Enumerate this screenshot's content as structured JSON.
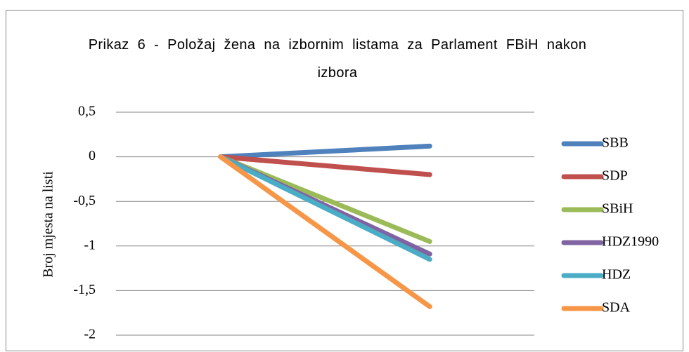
{
  "chart_data": {
    "type": "line",
    "title": "Prikaz 6 - Položaj žena na izbornim listama za Parlament FBiH nakon izbora",
    "ylabel": "Broj mjesta na listi",
    "categories": [
      null,
      null
    ],
    "series": [
      {
        "name": "SBB",
        "color": "#4f81bd",
        "values": [
          0,
          0.12
        ]
      },
      {
        "name": "SDP",
        "color": "#c0504d",
        "values": [
          0,
          -0.2
        ]
      },
      {
        "name": "SBiH",
        "color": "#9bbb59",
        "values": [
          0,
          -0.95
        ]
      },
      {
        "name": "HDZ1990",
        "color": "#8064a2",
        "values": [
          0,
          -1.09
        ]
      },
      {
        "name": "HDZ",
        "color": "#4bacc6",
        "values": [
          0,
          -1.15
        ]
      },
      {
        "name": "SDA",
        "color": "#f79646",
        "values": [
          0,
          -1.68
        ]
      }
    ],
    "ylim": [
      -2,
      0.5
    ],
    "yticks": [
      {
        "value": -2,
        "label": "-2"
      },
      {
        "value": -1.5,
        "label": "-1,5"
      },
      {
        "value": -1,
        "label": "-1"
      },
      {
        "value": -0.5,
        "label": "-0,5"
      },
      0,
      {
        "value": 0.5,
        "label": "0,5"
      }
    ],
    "grid": true,
    "legend": "right"
  }
}
